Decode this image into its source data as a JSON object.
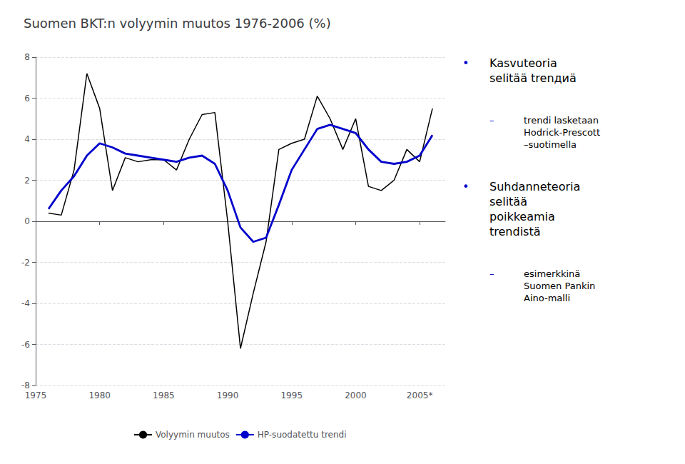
{
  "chart_data": {
    "type": "line",
    "title": "Suomen BKT:n volyymin muutos 1976-2006 (%)",
    "x": [
      1976,
      1977,
      1978,
      1979,
      1980,
      1981,
      1982,
      1983,
      1984,
      1985,
      1986,
      1987,
      1988,
      1989,
      1990,
      1991,
      1992,
      1993,
      1994,
      1995,
      1996,
      1997,
      1998,
      1999,
      2000,
      2001,
      2002,
      2003,
      2004,
      2005,
      2006
    ],
    "series": [
      {
        "name": "Volyymin muutos",
        "color": "#000000",
        "values": [
          0.4,
          0.3,
          2.5,
          7.2,
          5.5,
          1.5,
          3.1,
          2.9,
          3.0,
          3.0,
          2.5,
          4.0,
          5.2,
          5.3,
          0.0,
          -6.2,
          -3.5,
          -1.0,
          3.5,
          3.8,
          4.0,
          6.1,
          5.0,
          3.5,
          5.0,
          1.7,
          1.5,
          2.0,
          3.5,
          2.9,
          5.5
        ]
      },
      {
        "name": "HP-suodatettu trendi",
        "color": "#0000CC",
        "values": [
          0.6,
          1.5,
          2.2,
          3.2,
          3.8,
          3.6,
          3.3,
          3.2,
          3.1,
          3.0,
          2.9,
          3.1,
          3.2,
          2.8,
          1.5,
          -0.3,
          -1.0,
          -0.8,
          0.8,
          2.5,
          3.5,
          4.5,
          4.7,
          4.5,
          4.3,
          3.5,
          2.9,
          2.8,
          2.9,
          3.2,
          4.2
        ]
      }
    ],
    "xlim": [
      1975,
      2007
    ],
    "xticks": [
      1975,
      1980,
      1985,
      1990,
      1995,
      2000,
      {
        "value": 2005,
        "label": "2005*"
      }
    ],
    "ylim": [
      -8,
      8
    ],
    "yticks": [
      -8,
      -6,
      -4,
      -2,
      0,
      2,
      4,
      6,
      8
    ],
    "grid": true,
    "legend": "bottom",
    "annotations": [
      {
        "text": "•",
        "color": "#0000CC"
      },
      {
        "text": "Kasvuteoria\nselitää trenдиä",
        "color": "#000000"
      },
      {
        "text": "–",
        "color": "#0000CC"
      },
      {
        "text": "trendi lasketaan\nHodrick-Prescott\n–suotimella",
        "color": "#000000"
      },
      {
        "text": "•",
        "color": "#0000CC"
      },
      {
        "text": "Suhdanneteoria\nselitää\npoikkeamia\ntrendistä",
        "color": "#000000"
      },
      {
        "text": "–",
        "color": "#0000CC"
      },
      {
        "text": "esimerkkinä\nSuomen Pankin\nAino-malli",
        "color": "#000000"
      }
    ]
  }
}
